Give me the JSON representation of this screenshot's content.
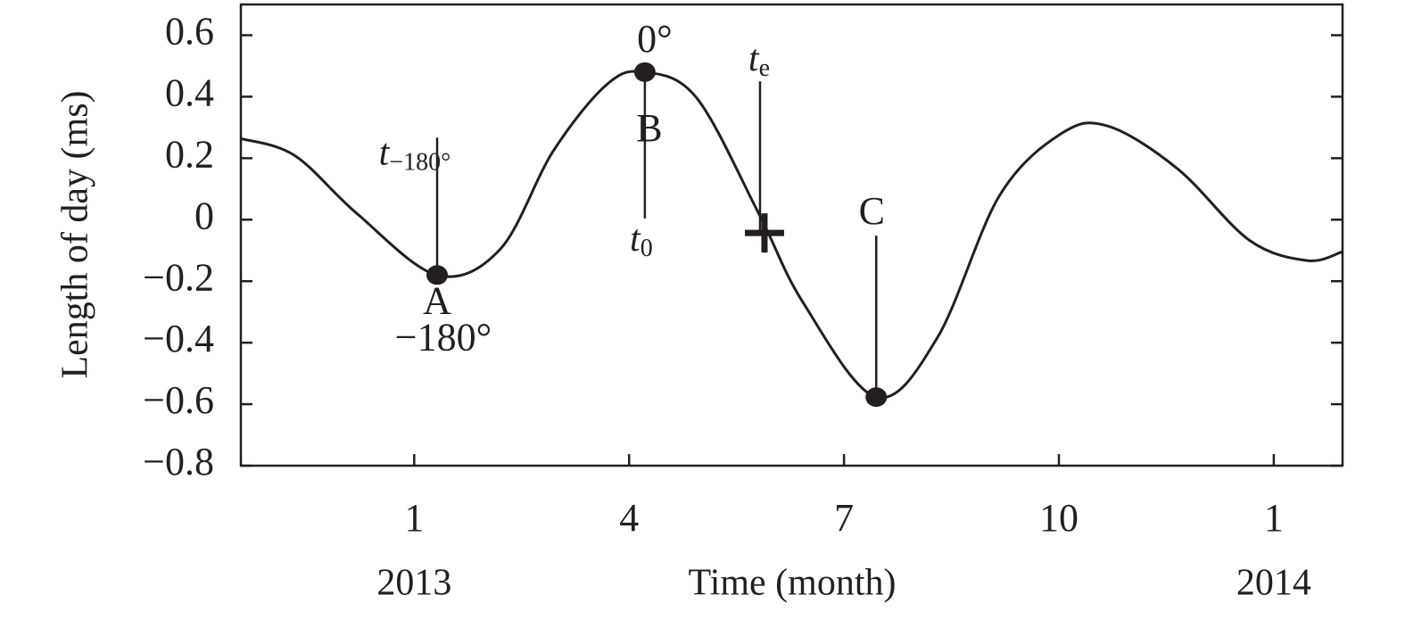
{
  "chart_data": {
    "type": "line",
    "xlabel": "Time (month)",
    "ylabel": "Length of day (ms)",
    "x": [
      -1.42,
      -0.67,
      0.2,
      1.32,
      2.2,
      2.94,
      3.69,
      4.21,
      4.94,
      5.81,
      6.43,
      7.45,
      8.3,
      9.17,
      10.04,
      10.69,
      11.66,
      12.66,
      13.47,
      13.96
    ],
    "series": [
      {
        "color": "#231f20",
        "values": [
          0.264,
          0.209,
          0.02,
          -0.18,
          -0.096,
          0.223,
          0.44,
          0.48,
          0.397,
          0.02,
          -0.27,
          -0.577,
          -0.385,
          0.078,
          0.281,
          0.304,
          0.165,
          -0.067,
          -0.133,
          -0.104
        ]
      }
    ],
    "xlim": [
      -1.42,
      13.96
    ],
    "ylim": [
      -0.8,
      0.7
    ],
    "xticks": [
      1,
      4,
      7,
      10,
      {
        "value": 13,
        "label": "1"
      }
    ],
    "yticks": [
      {
        "value": -0.8,
        "label": "−0.8"
      },
      {
        "value": -0.6,
        "label": "−0.6"
      },
      {
        "value": -0.4,
        "label": "−0.4"
      },
      {
        "value": -0.2,
        "label": "−0.2"
      },
      0,
      0.2,
      0.4,
      0.6
    ],
    "year_labels": [
      {
        "x": 1,
        "label": "2013"
      },
      {
        "x": 13,
        "label": "2014"
      }
    ],
    "markers": [
      {
        "name": "A",
        "x": 1.32,
        "y": -0.18,
        "phase": "−180°",
        "epoch": {
          "text": "t",
          "sub": "−180°"
        }
      },
      {
        "name": "B",
        "x": 4.22,
        "y": 0.48,
        "phase": "0°",
        "epoch": {
          "text": "t",
          "sub": "0"
        }
      },
      {
        "name": "C",
        "x": 7.45,
        "y": -0.577
      }
    ],
    "cross": {
      "x": 5.89,
      "y": -0.043,
      "epoch": {
        "text": "t",
        "sub": "e"
      }
    },
    "grid": false
  }
}
